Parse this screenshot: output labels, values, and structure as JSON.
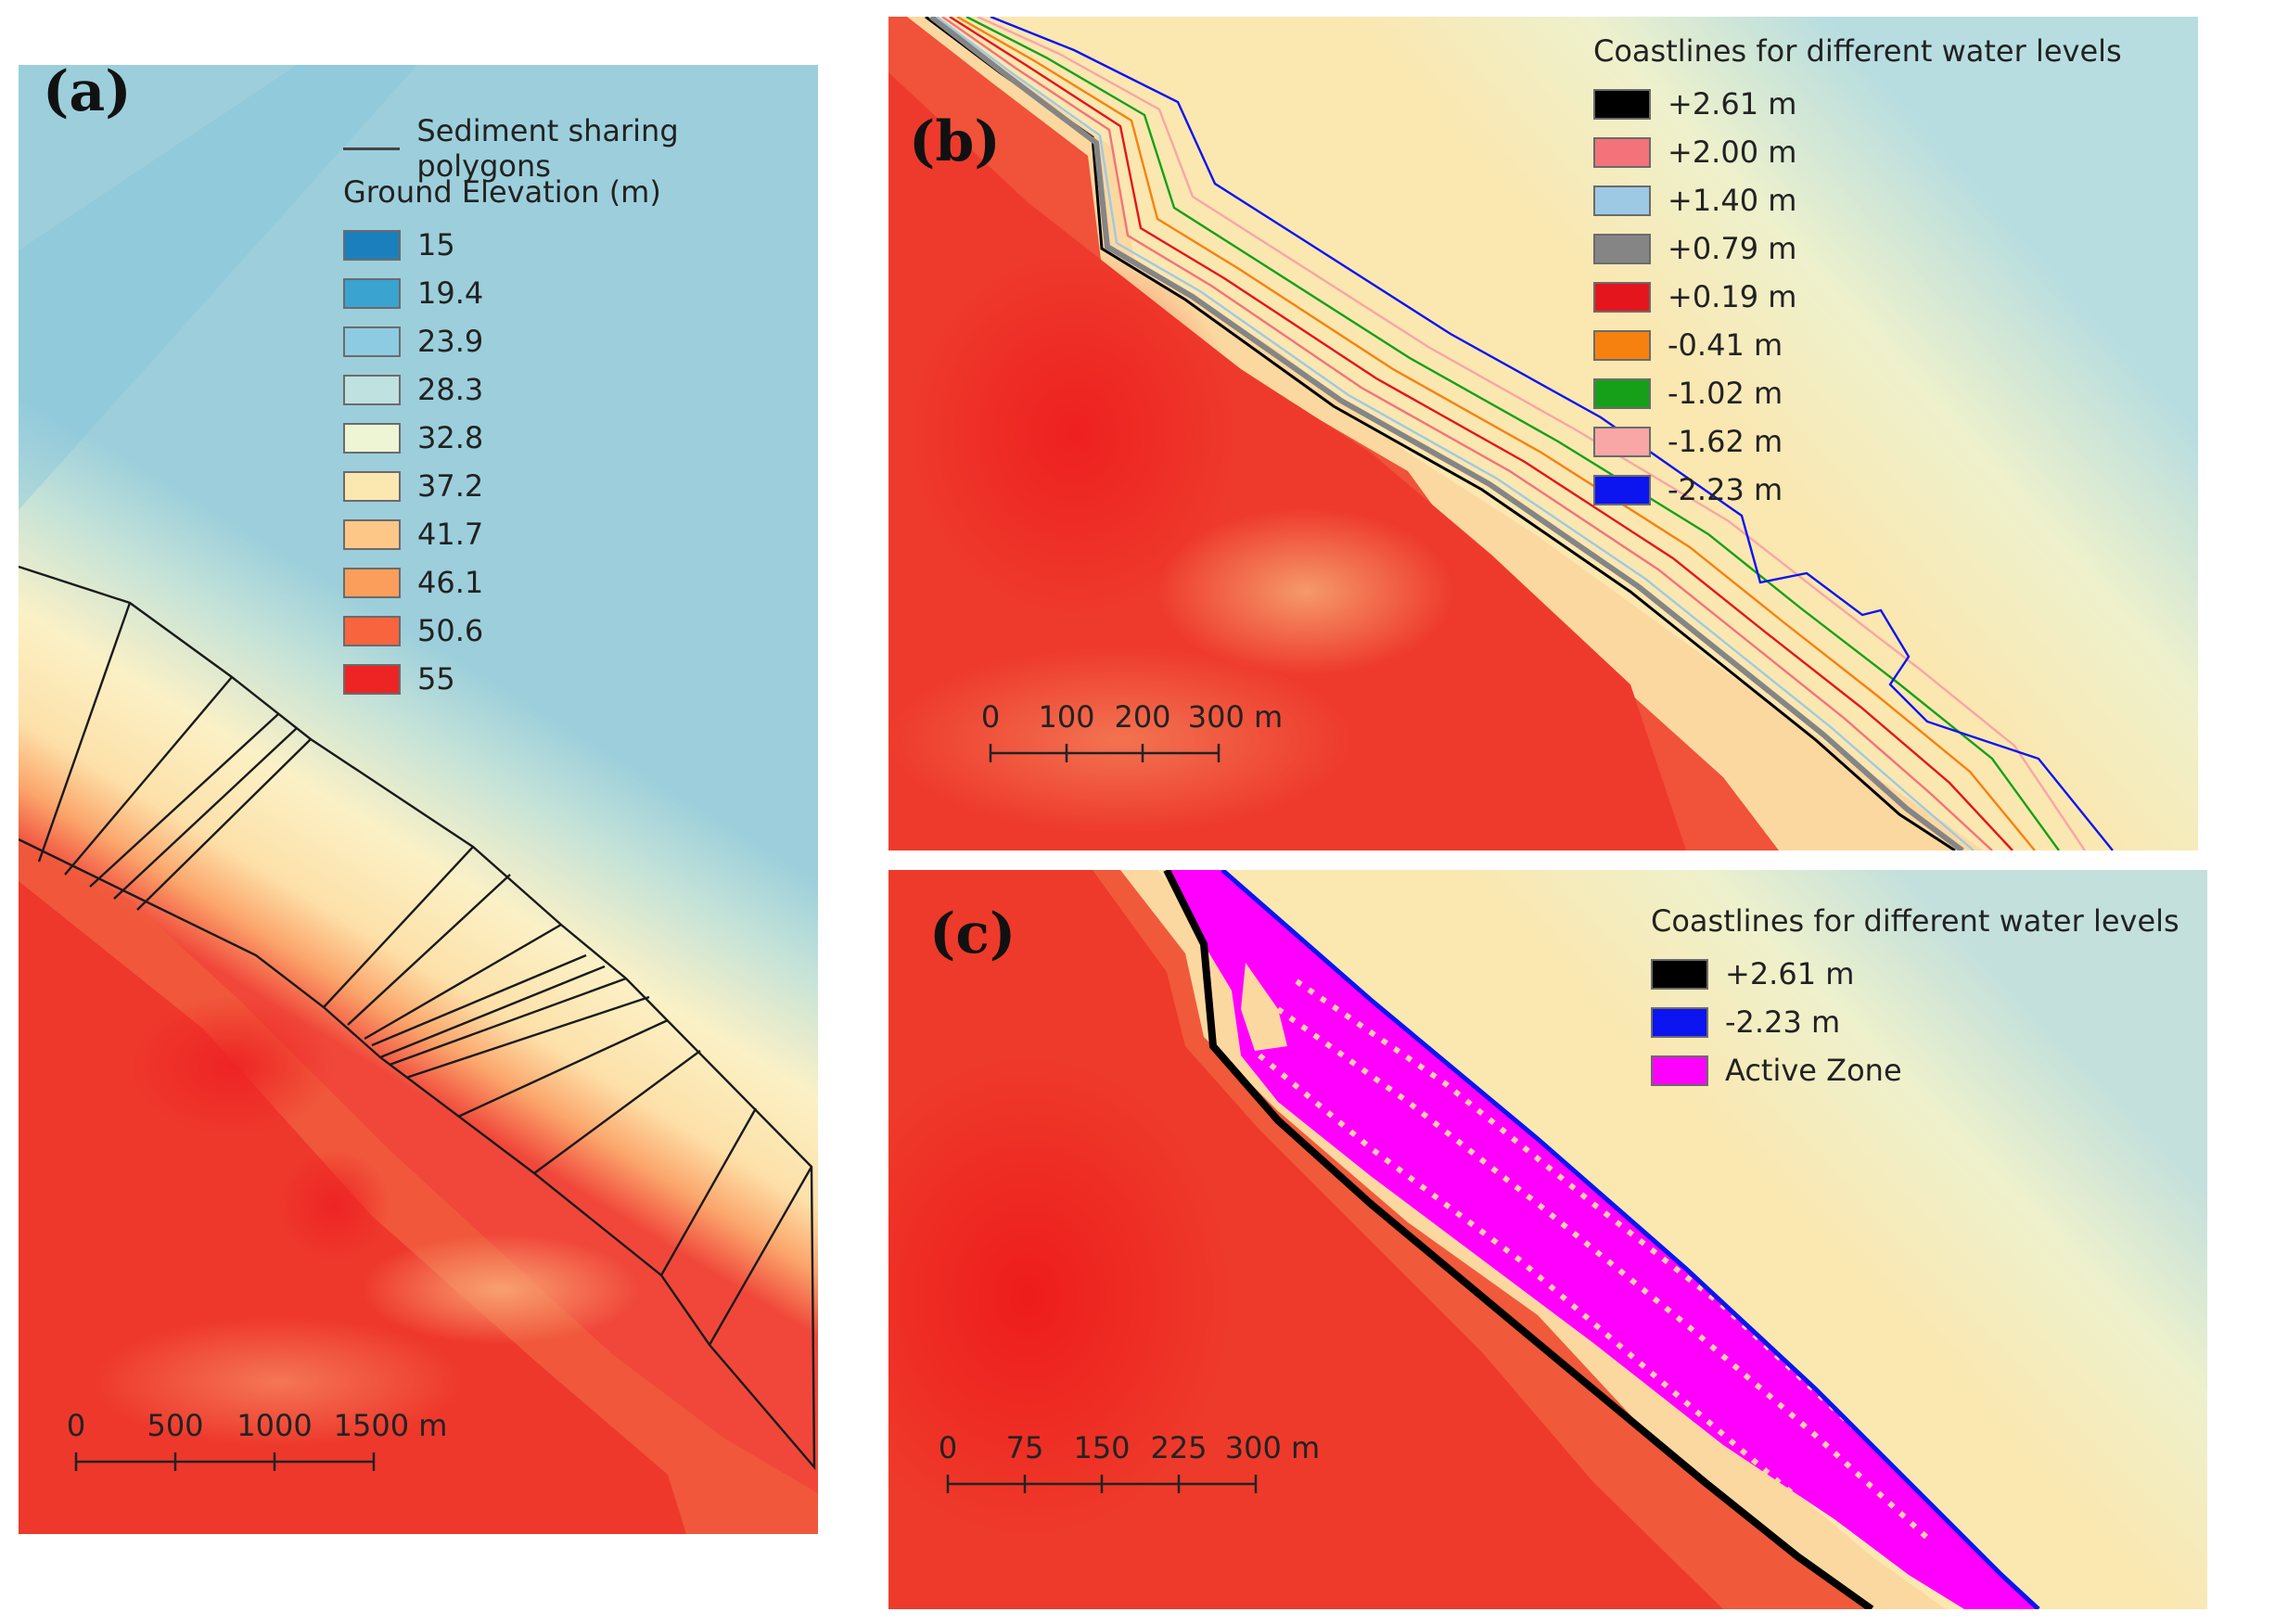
{
  "panel_a": {
    "label": "(a)",
    "legend": {
      "line_label": "Sediment sharing polygons",
      "title": "Ground Elevation (m)",
      "items": [
        {
          "value": "15",
          "color": "#1c7fbd"
        },
        {
          "value": "19.4",
          "color": "#3aa3d0"
        },
        {
          "value": "23.9",
          "color": "#8ccbe2"
        },
        {
          "value": "28.3",
          "color": "#bfe1df"
        },
        {
          "value": "32.8",
          "color": "#eef5d4"
        },
        {
          "value": "37.2",
          "color": "#fbe8b0"
        },
        {
          "value": "41.7",
          "color": "#fdc788"
        },
        {
          "value": "46.1",
          "color": "#fb9e5c"
        },
        {
          "value": "50.6",
          "color": "#f7643e"
        },
        {
          "value": "55",
          "color": "#ee2424"
        }
      ]
    },
    "scale": {
      "ticks": [
        "0",
        "500",
        "1000",
        "1500 m"
      ]
    }
  },
  "panel_b": {
    "label": "(b)",
    "legend": {
      "title": "Coastlines for different water levels",
      "items": [
        {
          "value": "+2.61 m",
          "color": "#000000"
        },
        {
          "value": "+2.00 m",
          "color": "#f4727a"
        },
        {
          "value": "+1.40 m",
          "color": "#9ec9e4"
        },
        {
          "value": "+0.79 m",
          "color": "#858585"
        },
        {
          "value": "+0.19 m",
          "color": "#e4151c"
        },
        {
          "value": "-0.41 m",
          "color": "#f7810f"
        },
        {
          "value": "-1.02 m",
          "color": "#16a01a"
        },
        {
          "value": "-1.62 m",
          "color": "#f8a6a6"
        },
        {
          "value": "-2.23 m",
          "color": "#0c14f0"
        }
      ]
    },
    "scale": {
      "ticks": [
        "0",
        "100",
        "200",
        "300 m"
      ]
    }
  },
  "panel_c": {
    "label": "(c)",
    "legend": {
      "title": "Coastlines for different water levels",
      "items": [
        {
          "value": "+2.61 m",
          "color": "#000000"
        },
        {
          "value": "-2.23 m",
          "color": "#0c14f0"
        },
        {
          "value": "Active Zone",
          "color": "#ff00ff"
        }
      ]
    },
    "scale": {
      "ticks": [
        "0",
        "75",
        "150",
        "225",
        "300 m"
      ]
    }
  }
}
